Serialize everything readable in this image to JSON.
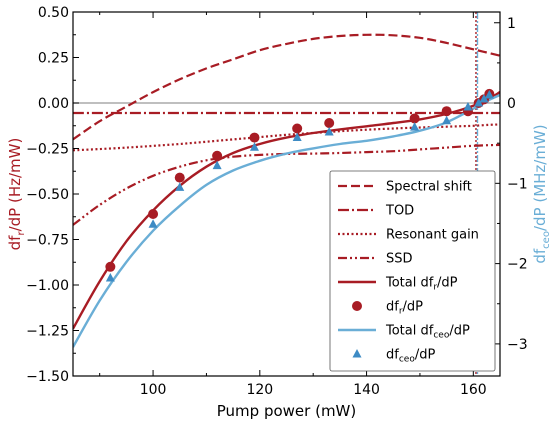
{
  "chart_data": {
    "type": "line",
    "xlabel": "Pump power (mW)",
    "ylabel_left": {
      "main": "df",
      "sub": "r",
      "tail": "/dP (Hz/mW)"
    },
    "ylabel_right": {
      "main": "df",
      "sub": "ceo",
      "tail": "/dP (MHz/mW)"
    },
    "xlim": [
      85,
      165
    ],
    "ylim_left": [
      -1.5,
      0.5
    ],
    "ylim_right": [
      -3.4,
      1.134
    ],
    "x_ticks": [
      "100",
      "120",
      "140",
      "160"
    ],
    "x_tick_values": [
      100,
      120,
      140,
      160
    ],
    "y_ticks_left": [
      "0.50",
      "0.25",
      "0.00",
      "−0.25",
      "−0.50",
      "−0.75",
      "−1.00",
      "−1.25",
      "−1.50"
    ],
    "y_tick_values_left": [
      0.5,
      0.25,
      0,
      -0.25,
      -0.5,
      -0.75,
      -1.0,
      -1.25,
      -1.5
    ],
    "y_ticks_right": [
      "1",
      "0",
      "−1",
      "−2",
      "−3"
    ],
    "y_tick_values_right": [
      1,
      0,
      -1,
      -2,
      -3
    ],
    "colors": {
      "red": "#a81c24",
      "blue": "#6aaed6",
      "blue_marker": "#3d8bc4",
      "zero_line": "#999999"
    },
    "threshold_x": 160.5,
    "series": [
      {
        "name": "Spectral shift",
        "style": "dashed",
        "x": [
          85,
          90,
          95,
          100,
          105,
          110,
          115,
          120,
          125,
          130,
          135,
          140,
          145,
          150,
          155,
          160,
          165
        ],
        "y": [
          -0.2,
          -0.1,
          -0.02,
          0.06,
          0.13,
          0.19,
          0.24,
          0.29,
          0.325,
          0.352,
          0.368,
          0.375,
          0.372,
          0.358,
          0.33,
          0.295,
          0.26
        ]
      },
      {
        "name": "TOD",
        "style": "dashdot",
        "x": [
          85,
          165
        ],
        "y": [
          -0.055,
          -0.055
        ]
      },
      {
        "name": "Resonant gain",
        "style": "dotted",
        "x": [
          85,
          95,
          105,
          115,
          125,
          135,
          145,
          155,
          160,
          163,
          165
        ],
        "y": [
          -0.26,
          -0.245,
          -0.225,
          -0.2,
          -0.175,
          -0.155,
          -0.14,
          -0.13,
          -0.125,
          -0.12,
          -0.118
        ]
      },
      {
        "name": "SSD",
        "style": "dashdotdot",
        "x": [
          85,
          90,
          95,
          100,
          105,
          110,
          115,
          120,
          125,
          130,
          135,
          140,
          145,
          150,
          155,
          160,
          165
        ],
        "y": [
          -0.67,
          -0.56,
          -0.47,
          -0.4,
          -0.35,
          -0.315,
          -0.295,
          -0.285,
          -0.28,
          -0.278,
          -0.275,
          -0.27,
          -0.265,
          -0.255,
          -0.245,
          -0.235,
          -0.23
        ]
      },
      {
        "name": "Total df_r/dP",
        "legend_main": "Total df",
        "legend_sub": "r",
        "legend_tail": "/dP",
        "style": "solid",
        "x": [
          85,
          90,
          95,
          100,
          105,
          110,
          115,
          120,
          125,
          130,
          135,
          140,
          145,
          150,
          155,
          160,
          163,
          165
        ],
        "y": [
          -1.24,
          -0.98,
          -0.76,
          -0.59,
          -0.455,
          -0.35,
          -0.275,
          -0.225,
          -0.19,
          -0.165,
          -0.145,
          -0.128,
          -0.11,
          -0.09,
          -0.06,
          -0.015,
          0.025,
          0.06
        ]
      },
      {
        "name": "df_r/dP",
        "legend_main": "df",
        "legend_sub": "r",
        "legend_tail": "/dP",
        "style": "circle",
        "x": [
          92,
          100,
          105,
          112,
          119,
          127,
          133,
          149,
          155,
          159,
          161,
          162,
          163
        ],
        "y": [
          -0.9,
          -0.61,
          -0.41,
          -0.29,
          -0.19,
          -0.14,
          -0.11,
          -0.085,
          -0.045,
          -0.045,
          0.0,
          0.02,
          0.05
        ]
      },
      {
        "name": "Total df_ceo/dP",
        "legend_main": "Total df",
        "legend_sub": "ceo",
        "legend_tail": "/dP",
        "style": "solid-blue",
        "x": [
          85,
          90,
          95,
          100,
          105,
          110,
          115,
          120,
          125,
          130,
          135,
          140,
          145,
          150,
          155,
          160,
          163,
          165
        ],
        "y": [
          -3.04,
          -2.46,
          -1.98,
          -1.59,
          -1.28,
          -1.02,
          -0.84,
          -0.72,
          -0.63,
          -0.565,
          -0.51,
          -0.47,
          -0.415,
          -0.345,
          -0.24,
          -0.07,
          0.04,
          0.1
        ]
      },
      {
        "name": "df_ceo/dP",
        "legend_main": "df",
        "legend_sub": "ceo",
        "legend_tail": "/dP",
        "style": "triangle",
        "x": [
          92,
          100,
          105,
          112,
          119,
          127,
          133,
          149,
          155,
          159,
          161,
          162,
          163
        ],
        "y": [
          -2.18,
          -1.51,
          -1.05,
          -0.78,
          -0.55,
          -0.43,
          -0.36,
          -0.3,
          -0.22,
          -0.05,
          0.0,
          0.05,
          0.1
        ]
      }
    ],
    "legend_placement": "lower-right"
  }
}
